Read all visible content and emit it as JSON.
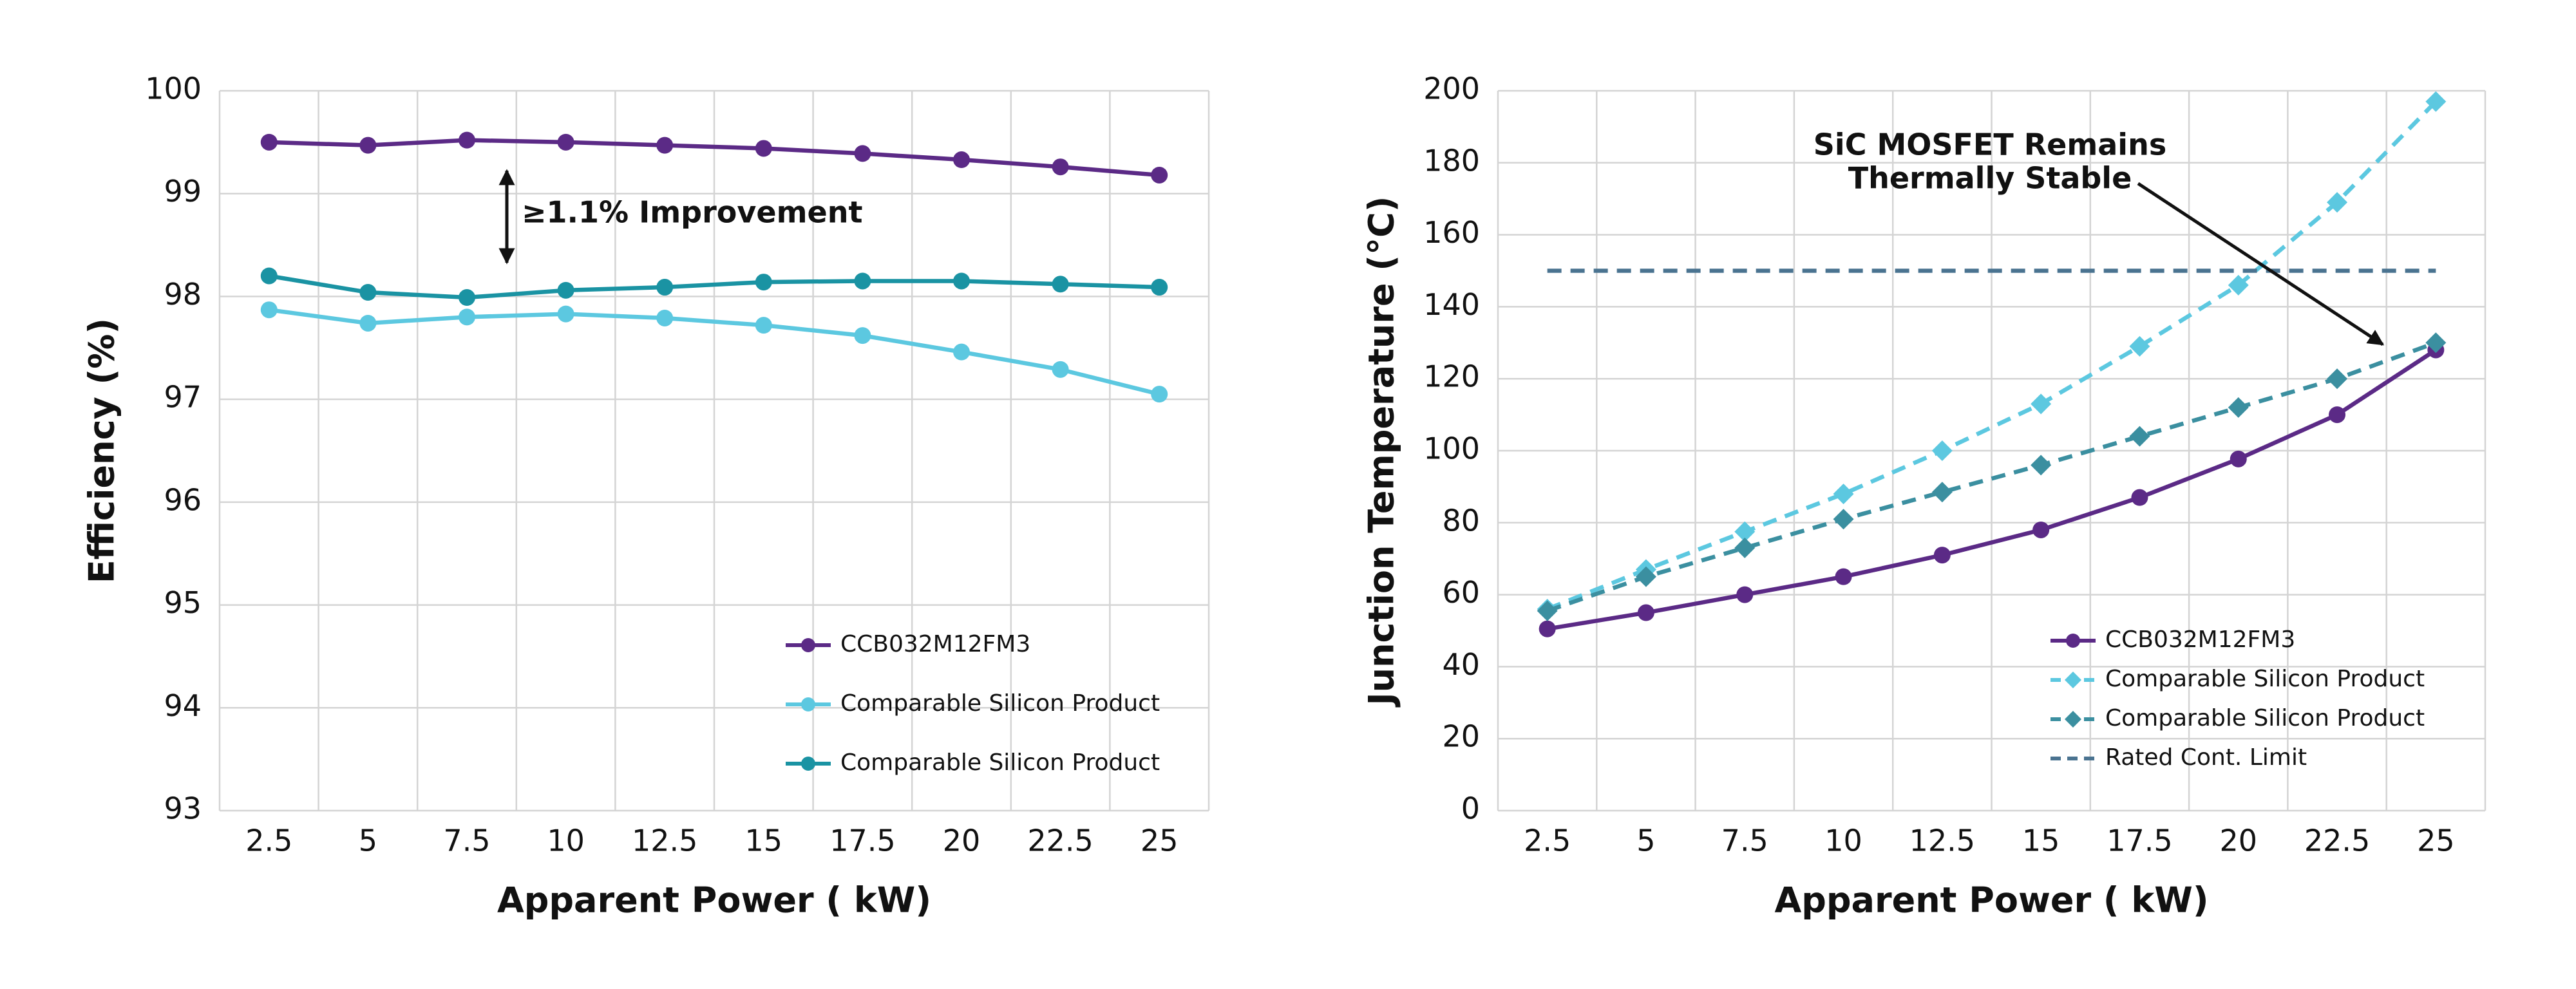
{
  "chart_data": [
    {
      "type": "line",
      "ylabel": "Efficiency (%)",
      "xlabel": "Apparent Power ( kW)",
      "x": [
        2.5,
        5,
        7.5,
        10,
        12.5,
        15,
        17.5,
        20,
        22.5,
        25
      ],
      "xlim": [
        1.25,
        26.25
      ],
      "xticks": [
        2.5,
        5,
        7.5,
        10,
        12.5,
        15,
        17.5,
        20,
        22.5,
        25
      ],
      "ylim": [
        93,
        100
      ],
      "yticks": [
        93,
        94,
        95,
        96,
        97,
        98,
        99,
        100
      ],
      "grid": true,
      "legend": "lower right",
      "annotation": "≥1.1% Improvement",
      "series": [
        {
          "name": "CCB032M12FM3",
          "color": "#5b2a86",
          "dash": "solid",
          "marker": "circle",
          "values": [
            99.5,
            99.47,
            99.52,
            99.5,
            99.47,
            99.44,
            99.39,
            99.33,
            99.26,
            99.18
          ]
        },
        {
          "name": "Comparable Silicon Product",
          "color": "#5cc8e0",
          "dash": "solid",
          "marker": "circle",
          "values": [
            97.87,
            97.74,
            97.8,
            97.83,
            97.79,
            97.72,
            97.62,
            97.46,
            97.29,
            97.05
          ]
        },
        {
          "name": "Comparable Silicon Product",
          "color": "#1a93a3",
          "dash": "solid",
          "marker": "circle",
          "values": [
            98.2,
            98.04,
            97.99,
            98.06,
            98.09,
            98.14,
            98.15,
            98.15,
            98.12,
            98.09
          ]
        }
      ]
    },
    {
      "type": "line",
      "ylabel": "Junction Temperature (°C)",
      "xlabel": "Apparent Power ( kW)",
      "x": [
        2.5,
        5,
        7.5,
        10,
        12.5,
        15,
        17.5,
        20,
        22.5,
        25
      ],
      "xlim": [
        1.25,
        26.25
      ],
      "xticks": [
        2.5,
        5,
        7.5,
        10,
        12.5,
        15,
        17.5,
        20,
        22.5,
        25
      ],
      "ylim": [
        0,
        200
      ],
      "yticks": [
        0,
        20,
        40,
        60,
        80,
        100,
        120,
        140,
        160,
        180,
        200
      ],
      "grid": true,
      "legend": "lower right",
      "annotation": [
        "SiC MOSFET Remains",
        "Thermally Stable"
      ],
      "series": [
        {
          "name": "CCB032M12FM3",
          "color": "#5b2a86",
          "dash": "solid",
          "marker": "circle",
          "values": [
            50.5,
            55,
            60,
            65,
            71,
            78,
            87,
            97.7,
            110,
            128
          ]
        },
        {
          "name": "Comparable Silicon Product",
          "color": "#5cc8e0",
          "dash": "dashed",
          "marker": "diamond",
          "values": [
            56,
            67,
            77.5,
            88,
            100,
            113,
            129,
            146,
            169,
            197
          ]
        },
        {
          "name": "Comparable Silicon Product",
          "color": "#3b8fa0",
          "dash": "dashed",
          "marker": "diamond",
          "values": [
            55.5,
            65,
            73,
            81,
            88.5,
            96,
            104,
            112,
            120,
            130
          ]
        },
        {
          "name": "Rated Cont. Limit",
          "color": "#4a7390",
          "dash": "dashed",
          "marker": "none",
          "values": [
            150,
            150,
            150,
            150,
            150,
            150,
            150,
            150,
            150,
            150
          ]
        }
      ]
    }
  ]
}
